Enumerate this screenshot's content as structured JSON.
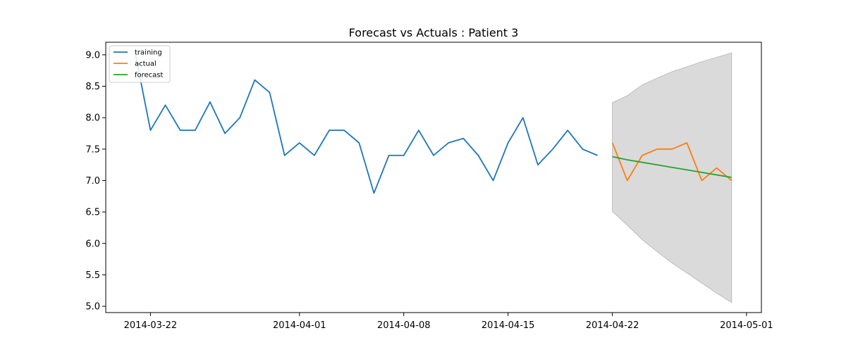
{
  "chart_data": {
    "type": "line",
    "title": "Forecast vs Actuals : Patient 3",
    "xlabel": "",
    "ylabel": "",
    "ylim": [
      4.9,
      9.2
    ],
    "xlim": [
      "2014-03-19",
      "2014-05-02"
    ],
    "x_ticks": [
      "2014-03-22",
      "2014-04-01",
      "2014-04-08",
      "2014-04-15",
      "2014-04-22",
      "2014-05-01"
    ],
    "y_ticks": [
      5.0,
      5.5,
      6.0,
      6.5,
      7.0,
      7.5,
      8.0,
      8.5,
      9.0
    ],
    "legend_position": "upper left",
    "series": [
      {
        "name": "training",
        "color": "#1f77b4",
        "x": [
          "2014-03-21",
          "2014-03-22",
          "2014-03-23",
          "2014-03-24",
          "2014-03-25",
          "2014-03-26",
          "2014-03-27",
          "2014-03-28",
          "2014-03-29",
          "2014-03-30",
          "2014-03-31",
          "2014-04-01",
          "2014-04-02",
          "2014-04-03",
          "2014-04-04",
          "2014-04-05",
          "2014-04-06",
          "2014-04-07",
          "2014-04-08",
          "2014-04-09",
          "2014-04-10",
          "2014-04-11",
          "2014-04-12",
          "2014-04-13",
          "2014-04-14",
          "2014-04-15",
          "2014-04-16",
          "2014-04-17",
          "2014-04-18",
          "2014-04-19",
          "2014-04-20",
          "2014-04-21"
        ],
        "values": [
          9.0,
          7.8,
          8.2,
          7.8,
          7.8,
          8.25,
          7.75,
          8.0,
          8.6,
          8.4,
          7.4,
          7.6,
          7.4,
          7.8,
          7.8,
          7.6,
          6.8,
          7.4,
          7.4,
          7.8,
          7.4,
          7.6,
          7.67,
          7.4,
          7.0,
          7.6,
          8.0,
          7.25,
          7.5,
          7.8,
          7.5,
          7.4
        ]
      },
      {
        "name": "actual",
        "color": "#ff7f0e",
        "x": [
          "2014-04-22",
          "2014-04-23",
          "2014-04-24",
          "2014-04-25",
          "2014-04-26",
          "2014-04-27",
          "2014-04-28",
          "2014-04-29",
          "2014-04-30"
        ],
        "values": [
          7.6,
          7.0,
          7.4,
          7.5,
          7.5,
          7.6,
          7.0,
          7.2,
          7.0
        ]
      },
      {
        "name": "forecast",
        "color": "#2ca02c",
        "x": [
          "2014-04-22",
          "2014-04-23",
          "2014-04-24",
          "2014-04-25",
          "2014-04-26",
          "2014-04-27",
          "2014-04-28",
          "2014-04-29",
          "2014-04-30"
        ],
        "values": [
          7.38,
          7.33,
          7.29,
          7.25,
          7.21,
          7.17,
          7.13,
          7.09,
          7.05
        ]
      }
    ],
    "confidence_band": {
      "color": "#d8d8d8",
      "x": [
        "2014-04-22",
        "2014-04-23",
        "2014-04-24",
        "2014-04-25",
        "2014-04-26",
        "2014-04-27",
        "2014-04-28",
        "2014-04-29",
        "2014-04-30"
      ],
      "lower": [
        6.51,
        6.29,
        6.06,
        5.87,
        5.69,
        5.53,
        5.37,
        5.21,
        5.06
      ],
      "upper": [
        8.24,
        8.35,
        8.52,
        8.63,
        8.73,
        8.81,
        8.89,
        8.96,
        9.03
      ]
    }
  }
}
